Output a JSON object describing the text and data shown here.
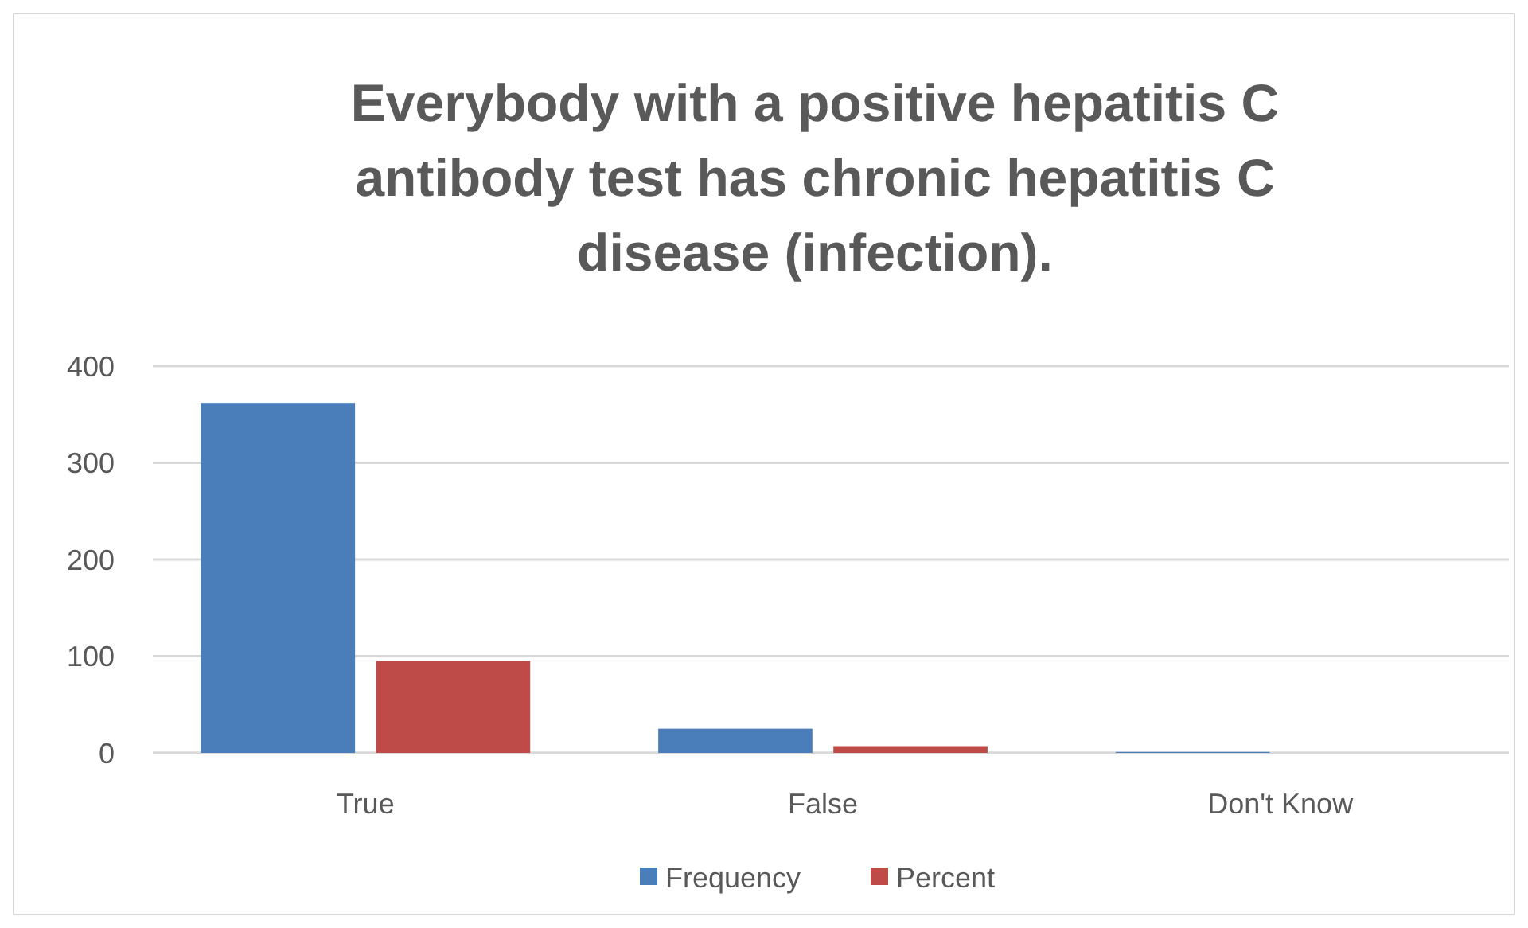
{
  "chart_data": {
    "type": "bar",
    "title": "Everybody with a positive hepatitis C antibody test has chronic hepatitis C disease (infection).",
    "categories": [
      "True",
      "False",
      "Don't Know"
    ],
    "series": [
      {
        "name": "Frequency",
        "color": "#4a7ebb",
        "values": [
          362,
          25,
          1
        ]
      },
      {
        "name": "Percent",
        "color": "#be4b48",
        "values": [
          95,
          7,
          null
        ]
      }
    ],
    "ylim": [
      0,
      400
    ],
    "yticks": [
      0,
      100,
      200,
      300,
      400
    ],
    "grid": "y",
    "legend": "bottom"
  }
}
